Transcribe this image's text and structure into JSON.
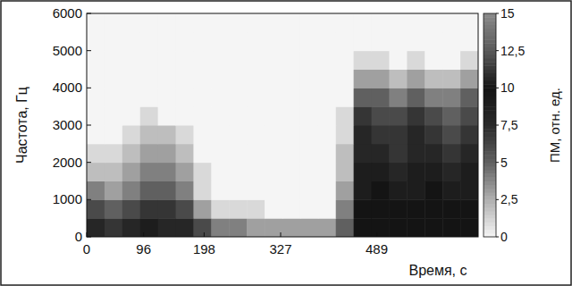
{
  "chart_data": {
    "type": "heatmap",
    "x_label": "Время, с",
    "y_label": "Частота, Гц",
    "xlim": [
      0,
      660
    ],
    "ylim": [
      0,
      6000
    ],
    "xticks": [
      0,
      96,
      198,
      327,
      489
    ],
    "yticks": [
      0,
      1000,
      2000,
      3000,
      4000,
      5000,
      6000
    ],
    "x_bins": [
      0,
      30,
      60,
      90,
      120,
      150,
      180,
      210,
      240,
      270,
      300,
      330,
      360,
      390,
      420,
      450,
      480,
      510,
      540,
      570,
      600,
      630,
      660
    ],
    "y_bins": [
      0,
      500,
      1000,
      1500,
      2000,
      2500,
      3000,
      3500,
      4000,
      4500,
      5000,
      5500,
      6000
    ],
    "cells": [
      [
        8,
        7,
        8,
        9,
        8,
        8,
        6,
        4,
        4,
        3,
        3,
        3,
        3,
        3,
        5,
        10,
        10,
        10,
        10,
        10,
        10,
        10
      ],
      [
        6,
        5,
        6,
        7,
        7,
        6,
        3,
        1,
        1,
        1,
        0,
        0,
        0,
        0,
        4,
        10,
        10,
        10,
        10,
        10,
        10,
        10
      ],
      [
        4,
        3,
        4,
        5,
        5,
        4,
        1,
        0,
        0,
        0,
        0,
        0,
        0,
        0,
        3,
        9,
        10,
        9,
        9,
        10,
        9,
        9
      ],
      [
        2,
        2,
        3,
        4,
        4,
        3,
        1,
        0,
        0,
        0,
        0,
        0,
        0,
        0,
        2,
        9,
        9,
        8,
        9,
        9,
        8,
        9
      ],
      [
        1,
        1,
        2,
        3,
        3,
        2,
        0,
        0,
        0,
        0,
        0,
        0,
        0,
        0,
        2,
        8,
        8,
        7,
        8,
        8,
        7,
        8
      ],
      [
        0,
        0,
        1,
        2,
        2,
        1,
        0,
        0,
        0,
        0,
        0,
        0,
        0,
        0,
        1,
        8,
        7,
        7,
        8,
        7,
        6,
        7
      ],
      [
        0,
        0,
        0,
        1,
        0,
        0,
        0,
        0,
        0,
        0,
        0,
        0,
        0,
        0,
        1,
        7,
        6,
        6,
        7,
        6,
        5,
        6
      ],
      [
        0,
        0,
        0,
        0,
        0,
        0,
        0,
        0,
        0,
        0,
        0,
        0,
        0,
        0,
        0,
        5,
        5,
        4,
        5,
        4,
        4,
        5
      ],
      [
        0,
        0,
        0,
        0,
        0,
        0,
        0,
        0,
        0,
        0,
        0,
        0,
        0,
        0,
        0,
        3,
        3,
        2,
        3,
        2,
        2,
        3
      ],
      [
        0,
        0,
        0,
        0,
        0,
        0,
        0,
        0,
        0,
        0,
        0,
        0,
        0,
        0,
        0,
        1,
        1,
        0,
        1,
        0,
        0,
        1
      ],
      [
        0,
        0,
        0,
        0,
        0,
        0,
        0,
        0,
        0,
        0,
        0,
        0,
        0,
        0,
        0,
        0,
        0,
        0,
        0,
        0,
        0,
        0
      ],
      [
        0,
        0,
        0,
        0,
        0,
        0,
        0,
        0,
        0,
        0,
        0,
        0,
        0,
        0,
        0,
        0,
        0,
        0,
        0,
        0,
        0,
        0
      ]
    ],
    "colorbar_label": "ПМ, отн. ед.",
    "colorbar_lim": [
      0,
      15
    ],
    "colorbar_ticks": [
      0,
      {
        "value": 2.5,
        "label": "2,5"
      },
      5,
      {
        "value": 7.5,
        "label": "7,5"
      },
      10,
      {
        "value": 12.5,
        "label": "12,5"
      },
      15
    ]
  }
}
